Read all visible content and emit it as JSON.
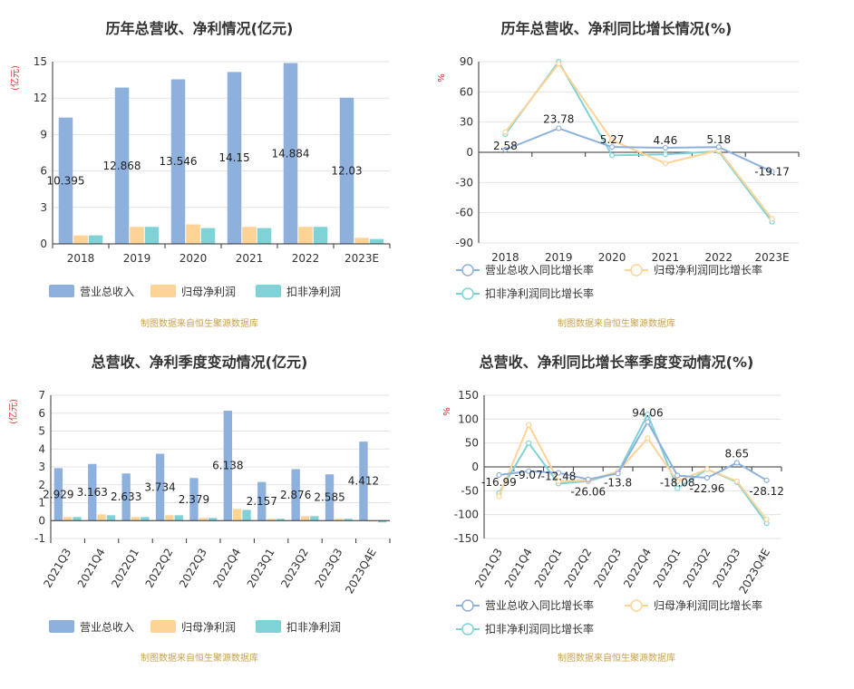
{
  "source_note": "制图数据来自恒生聚源数据库",
  "colors": {
    "revenue": "#8eb0dd",
    "net_profit": "#fdd396",
    "deducted_profit": "#7fd3d6",
    "grid": "#e3e3e3",
    "axis": "#333333",
    "ylabel": "#e03030",
    "source": "#c8a24a"
  },
  "chart_data": [
    {
      "id": "annual_bars",
      "type": "bar",
      "title": "历年总营收、净利情况(亿元)",
      "ylabel": "(亿元)",
      "xlabel": "",
      "ylim": [
        0,
        15
      ],
      "yticks": [
        0,
        3,
        6,
        9,
        12,
        15
      ],
      "categories": [
        "2018",
        "2019",
        "2020",
        "2021",
        "2022",
        "2023E"
      ],
      "series": [
        {
          "name": "营业总收入",
          "values": [
            10.395,
            12.868,
            13.546,
            14.15,
            14.884,
            12.03
          ]
        },
        {
          "name": "归母净利润",
          "values": [
            0.7,
            1.4,
            1.6,
            1.4,
            1.4,
            0.5
          ]
        },
        {
          "name": "扣非净利润",
          "values": [
            0.7,
            1.4,
            1.3,
            1.3,
            1.4,
            0.4
          ]
        }
      ],
      "data_labels": [
        "10.395",
        "12.868",
        "13.546",
        "14.15",
        "14.884",
        "12.03"
      ],
      "legend": [
        "营业总收入",
        "归母净利润",
        "扣非净利润"
      ]
    },
    {
      "id": "annual_growth",
      "type": "line",
      "title": "历年总营收、净利同比增长情况(%)",
      "ylabel": "%",
      "xlabel": "",
      "ylim": [
        -90,
        90
      ],
      "yticks": [
        -90,
        -60,
        -30,
        0,
        30,
        60,
        90
      ],
      "categories": [
        "2018",
        "2019",
        "2020",
        "2021",
        "2022",
        "2023E"
      ],
      "series": [
        {
          "name": "营业总收入同比增长率",
          "values": [
            2.58,
            23.78,
            5.27,
            4.46,
            5.18,
            -19.17
          ]
        },
        {
          "name": "归母净利润同比增长率",
          "values": [
            20,
            88,
            12,
            -11,
            2,
            -66
          ]
        },
        {
          "name": "扣非净利润同比增长率",
          "values": [
            18,
            90,
            -3,
            -2,
            1,
            -69
          ]
        }
      ],
      "data_labels": [
        "2.58",
        "23.78",
        "5.27",
        "4.46",
        "5.18",
        "-19.17"
      ],
      "legend": [
        "营业总收入同比增长率",
        "归母净利润同比增长率",
        "扣非净利润同比增长率"
      ]
    },
    {
      "id": "quarterly_bars",
      "type": "bar",
      "title": "总营收、净利季度变动情况(亿元)",
      "ylabel": "(亿元)",
      "xlabel": "",
      "ylim": [
        -1,
        7
      ],
      "yticks": [
        -1,
        0,
        1,
        2,
        3,
        4,
        5,
        6,
        7
      ],
      "categories": [
        "2021Q3",
        "2021Q4",
        "2022Q1",
        "2022Q2",
        "2022Q3",
        "2022Q4",
        "2023Q1",
        "2023Q2",
        "2023Q3",
        "2023Q4E"
      ],
      "series": [
        {
          "name": "营业总收入",
          "values": [
            2.929,
            3.163,
            2.633,
            3.734,
            2.379,
            6.138,
            2.157,
            2.876,
            2.585,
            4.412
          ]
        },
        {
          "name": "归母净利润",
          "values": [
            0.2,
            0.35,
            0.2,
            0.3,
            0.15,
            0.65,
            0.1,
            0.25,
            0.1,
            -0.05
          ]
        },
        {
          "name": "扣非净利润",
          "values": [
            0.2,
            0.3,
            0.2,
            0.3,
            0.15,
            0.6,
            0.1,
            0.25,
            0.1,
            -0.1
          ]
        }
      ],
      "data_labels": [
        "2.929",
        "3.163",
        "2.633",
        "3.734",
        "2.379",
        "6.138",
        "2.157",
        "2.876",
        "2.585",
        "4.412"
      ],
      "legend": [
        "营业总收入",
        "归母净利润",
        "扣非净利润"
      ]
    },
    {
      "id": "quarterly_growth",
      "type": "line",
      "title": "总营收、净利同比增长率季度变动情况(%)",
      "ylabel": "%",
      "xlabel": "",
      "ylim": [
        -150,
        150
      ],
      "yticks": [
        -150,
        -100,
        -50,
        0,
        50,
        100,
        150
      ],
      "categories": [
        "2021Q3",
        "2021Q4",
        "2022Q1",
        "2022Q2",
        "2022Q3",
        "2022Q4",
        "2023Q1",
        "2023Q2",
        "2023Q3",
        "2023Q4E"
      ],
      "series": [
        {
          "name": "营业总收入同比增长率",
          "values": [
            -16.99,
            -9.07,
            -12.48,
            -26.06,
            -13.8,
            94.06,
            -18.08,
            -22.96,
            8.65,
            -28.12
          ]
        },
        {
          "name": "归母净利润同比增长率",
          "values": [
            -62,
            88,
            -30,
            -28,
            -10,
            60,
            -30,
            -5,
            -30,
            -110
          ]
        },
        {
          "name": "扣非净利润同比增长率",
          "values": [
            -55,
            50,
            -35,
            -30,
            -12,
            110,
            -45,
            -5,
            -32,
            -118
          ]
        }
      ],
      "data_labels": [
        "-16.99",
        "-9.07",
        "-12.48",
        "-26.06",
        "-13.8",
        "94.06",
        "-18.08",
        "-22.96",
        "8.65",
        "-28.12"
      ],
      "legend": [
        "营业总收入同比增长率",
        "归母净利润同比增长率",
        "扣非净利润同比增长率"
      ]
    }
  ]
}
